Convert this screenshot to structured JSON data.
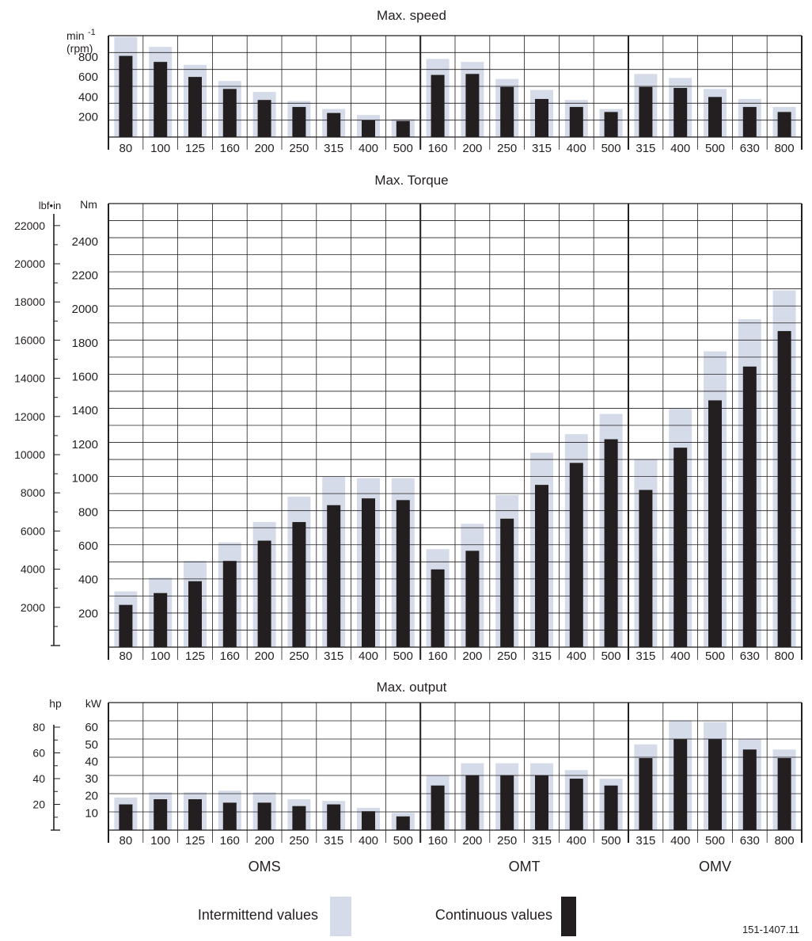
{
  "groups": [
    {
      "name": "OMS",
      "sizes": [
        "80",
        "100",
        "125",
        "160",
        "200",
        "250",
        "315",
        "400",
        "500"
      ]
    },
    {
      "name": "OMT",
      "sizes": [
        "160",
        "200",
        "250",
        "315",
        "400",
        "500"
      ]
    },
    {
      "name": "OMV",
      "sizes": [
        "315",
        "400",
        "500",
        "630",
        "800"
      ]
    }
  ],
  "legend": {
    "intermittent_label": "Intermittend values",
    "continuous_label": "Continuous values",
    "intermittent_color": "#d5dbe8",
    "continuous_color": "#231f20"
  },
  "figure_code": "151-1407.11",
  "chart_data": [
    {
      "type": "bar",
      "title": "Max. speed",
      "ylabel": "min -1\n(rpm)",
      "ylim": [
        0,
        1000
      ],
      "yticks": [
        200,
        400,
        600,
        800
      ],
      "grid": true,
      "categories": [
        "80",
        "100",
        "125",
        "160",
        "200",
        "250",
        "315",
        "400",
        "500",
        "160",
        "200",
        "250",
        "315",
        "400",
        "500",
        "315",
        "400",
        "500",
        "630",
        "800"
      ],
      "series": [
        {
          "name": "Intermittend values",
          "values": [
            1000,
            900,
            720,
            560,
            450,
            360,
            280,
            220,
            180,
            780,
            750,
            580,
            470,
            370,
            280,
            630,
            590,
            480,
            380,
            300
          ]
        },
        {
          "name": "Continuous values",
          "values": [
            810,
            750,
            600,
            480,
            370,
            300,
            240,
            170,
            160,
            620,
            630,
            500,
            380,
            300,
            250,
            500,
            490,
            400,
            300,
            250
          ]
        }
      ]
    },
    {
      "type": "bar",
      "title": "Max. Torque",
      "ylabel": "Nm",
      "secondary_ylabel": "lbf•in",
      "ylim": [
        0,
        2650
      ],
      "yticks": [
        200,
        400,
        600,
        800,
        1000,
        1200,
        1400,
        1600,
        1800,
        2000,
        2200,
        2400
      ],
      "secondary_yticks": [
        2000,
        4000,
        6000,
        8000,
        10000,
        12000,
        14000,
        16000,
        18000,
        20000,
        22000
      ],
      "grid": true,
      "categories": [
        "80",
        "100",
        "125",
        "160",
        "200",
        "250",
        "315",
        "400",
        "500",
        "160",
        "200",
        "250",
        "315",
        "400",
        "500",
        "315",
        "400",
        "500",
        "630",
        "800"
      ],
      "series": [
        {
          "name": "Intermittend values",
          "values": [
            330,
            410,
            510,
            620,
            740,
            890,
            1010,
            1000,
            1000,
            580,
            730,
            900,
            1150,
            1260,
            1380,
            1110,
            1410,
            1750,
            1940,
            2110
          ]
        },
        {
          "name": "Continuous values",
          "values": [
            250,
            320,
            390,
            510,
            630,
            740,
            840,
            880,
            870,
            460,
            570,
            760,
            960,
            1090,
            1230,
            930,
            1180,
            1460,
            1660,
            1870
          ]
        }
      ]
    },
    {
      "type": "bar",
      "title": "Max. output",
      "ylabel": "kW",
      "secondary_ylabel": "hp",
      "ylim": [
        0,
        68
      ],
      "yticks": [
        10,
        20,
        30,
        40,
        50,
        60
      ],
      "secondary_yticks": [
        20,
        40,
        60,
        80
      ],
      "grid": true,
      "categories": [
        "80",
        "100",
        "125",
        "160",
        "200",
        "250",
        "315",
        "400",
        "500",
        "160",
        "200",
        "250",
        "315",
        "400",
        "500",
        "315",
        "400",
        "500",
        "630",
        "800"
      ],
      "series": [
        {
          "name": "Intermittend values",
          "values": [
            19,
            22,
            22,
            23,
            22,
            18,
            17,
            13,
            10,
            32,
            39,
            39,
            39,
            35,
            30,
            50,
            64,
            63,
            53,
            47
          ]
        },
        {
          "name": "Continuous values",
          "values": [
            15,
            18,
            18,
            16,
            16,
            14,
            15,
            11,
            8,
            26,
            32,
            32,
            32,
            30,
            26,
            42,
            53,
            53,
            47,
            42
          ]
        }
      ]
    }
  ]
}
